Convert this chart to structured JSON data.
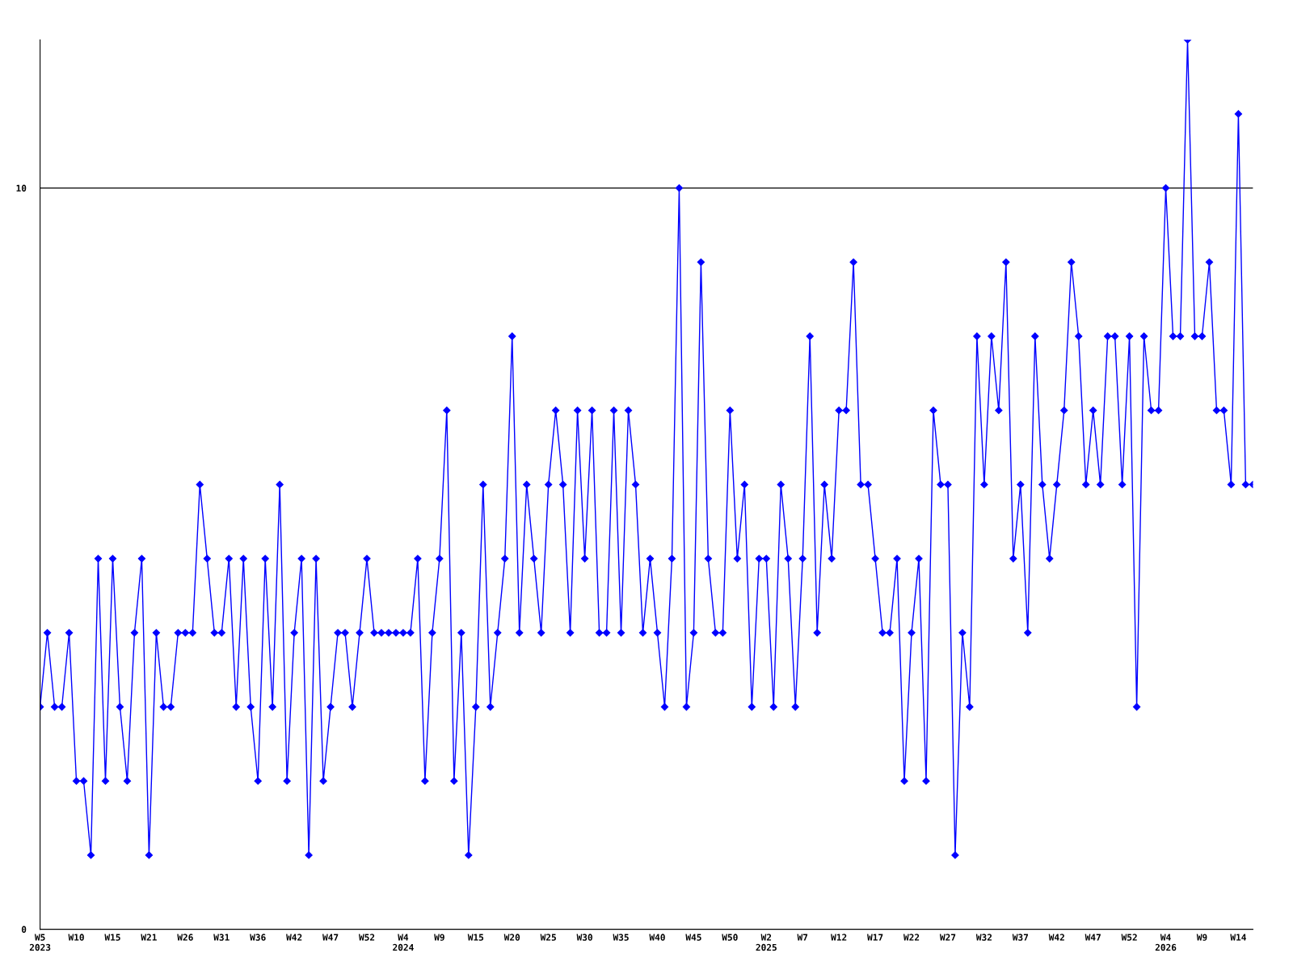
{
  "chart_data": {
    "type": "line",
    "categories": [
      "W5\n2023",
      null,
      null,
      null,
      null,
      "W10",
      null,
      null,
      null,
      null,
      "W15",
      null,
      null,
      null,
      null,
      "W21",
      null,
      null,
      null,
      null,
      "W26",
      null,
      null,
      null,
      null,
      "W31",
      null,
      null,
      null,
      null,
      "W36",
      null,
      null,
      null,
      null,
      "W42",
      null,
      null,
      null,
      null,
      "W47",
      null,
      null,
      null,
      null,
      "W52",
      null,
      null,
      null,
      null,
      "W4\n2024",
      null,
      null,
      null,
      null,
      "W9",
      null,
      null,
      null,
      null,
      "W15",
      null,
      null,
      null,
      null,
      "W20",
      null,
      null,
      null,
      null,
      "W25",
      null,
      null,
      null,
      null,
      "W30",
      null,
      null,
      null,
      null,
      "W35",
      null,
      null,
      null,
      null,
      "W40",
      null,
      null,
      null,
      null,
      "W45",
      null,
      null,
      null,
      null,
      "W50",
      null,
      null,
      null,
      null,
      "W2\n2025",
      null,
      null,
      null,
      null,
      "W7",
      null,
      null,
      null,
      null,
      "W12",
      null,
      null,
      null,
      null,
      "W17",
      null,
      null,
      null,
      null,
      "W22",
      null,
      null,
      null,
      null,
      "W27",
      null,
      null,
      null,
      null,
      "W32",
      null,
      null,
      null,
      null,
      "W37",
      null,
      null,
      null,
      null,
      "W42",
      null,
      null,
      null,
      null,
      "W47",
      null,
      null,
      null,
      null,
      "W52",
      null,
      null,
      null,
      null,
      "W4\n2026",
      null,
      null,
      null,
      null,
      "W9",
      null,
      null,
      null,
      null,
      "W14",
      null,
      null
    ],
    "series": [
      {
        "color": "#0000ff",
        "values": [
          3,
          4,
          3,
          3,
          4,
          2,
          2,
          1,
          5,
          2,
          5,
          3,
          2,
          4,
          5,
          1,
          4,
          3,
          3,
          4,
          4,
          4,
          6,
          5,
          4,
          4,
          5,
          3,
          5,
          3,
          2,
          5,
          3,
          6,
          2,
          4,
          5,
          1,
          5,
          2,
          3,
          4,
          4,
          3,
          4,
          5,
          4,
          4,
          4,
          4,
          4,
          4,
          5,
          2,
          4,
          5,
          7,
          2,
          4,
          1,
          3,
          6,
          3,
          4,
          5,
          8,
          4,
          6,
          5,
          4,
          6,
          7,
          6,
          4,
          7,
          5,
          7,
          4,
          4,
          7,
          4,
          7,
          6,
          4,
          5,
          4,
          3,
          5,
          10,
          3,
          4,
          9,
          5,
          4,
          4,
          7,
          5,
          6,
          3,
          5,
          5,
          3,
          6,
          5,
          3,
          5,
          8,
          4,
          6,
          5,
          7,
          7,
          9,
          6,
          6,
          5,
          4,
          4,
          5,
          2,
          4,
          5,
          2,
          7,
          6,
          6,
          1,
          4,
          3,
          8,
          6,
          8,
          7,
          9,
          5,
          6,
          4,
          8,
          6,
          5,
          6,
          7,
          9,
          8,
          6,
          7,
          6,
          8,
          8,
          6,
          8,
          3,
          8,
          7,
          7,
          10,
          8,
          8,
          12,
          8,
          8,
          9,
          7,
          7,
          6,
          11,
          6,
          6
        ]
      }
    ],
    "ylim": [
      0,
      12
    ],
    "yticks": [
      0,
      10
    ],
    "grid": "y",
    "marker": "diamond",
    "line_style": "solid",
    "legend": false
  }
}
